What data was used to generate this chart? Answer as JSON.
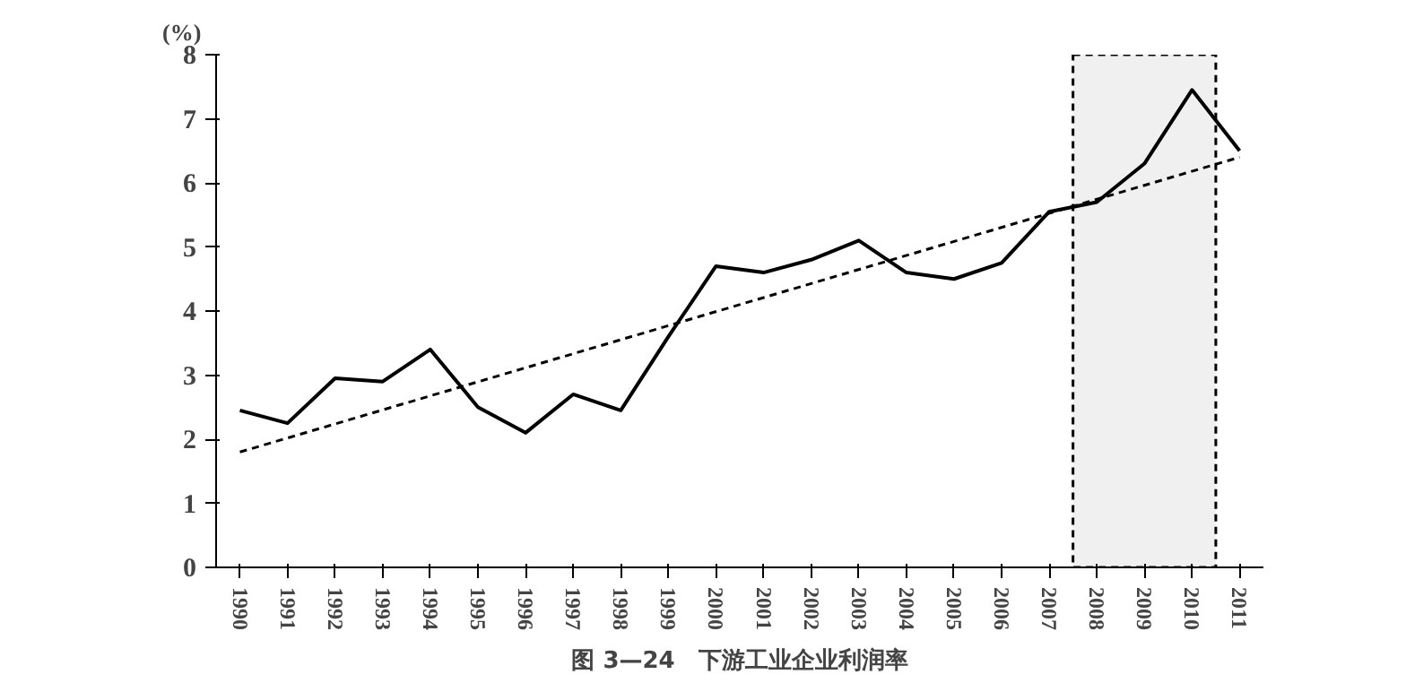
{
  "chart_data": {
    "type": "line",
    "title": "图 3—24　下游工业企业利润率",
    "ylabel": "(%)",
    "x": [
      1990,
      1991,
      1992,
      1993,
      1994,
      1995,
      1996,
      1997,
      1998,
      1999,
      2000,
      2001,
      2002,
      2003,
      2004,
      2005,
      2006,
      2007,
      2008,
      2009,
      2010,
      2011
    ],
    "series": [
      {
        "color": "#000000",
        "line_style": "solid",
        "values": [
          2.45,
          2.25,
          2.95,
          2.9,
          3.4,
          2.5,
          2.1,
          2.7,
          2.45,
          3.6,
          4.7,
          4.6,
          4.8,
          5.1,
          4.6,
          4.5,
          4.75,
          5.55,
          5.7,
          6.3,
          7.45,
          6.5
        ]
      },
      {
        "type": "line",
        "color": "#000000",
        "line_style": "dashed",
        "x": [
          1990,
          2011
        ],
        "values": [
          1.8,
          6.4
        ]
      }
    ],
    "xlim": [
      1989.5,
      2011.5
    ],
    "xticks": [
      1990,
      1991,
      1992,
      1993,
      1994,
      1995,
      1996,
      1997,
      1998,
      1999,
      2000,
      2001,
      2002,
      2003,
      2004,
      2005,
      2006,
      2007,
      2008,
      2009,
      2010,
      2011
    ],
    "ylim": [
      0,
      8
    ],
    "yticks": [
      0,
      1,
      2,
      3,
      4,
      5,
      6,
      7,
      8
    ],
    "bands": [
      {
        "axis": "x",
        "from": 2007.5,
        "to": 2010.5,
        "color": "#000000"
      }
    ],
    "grid": false,
    "marker": "none"
  }
}
